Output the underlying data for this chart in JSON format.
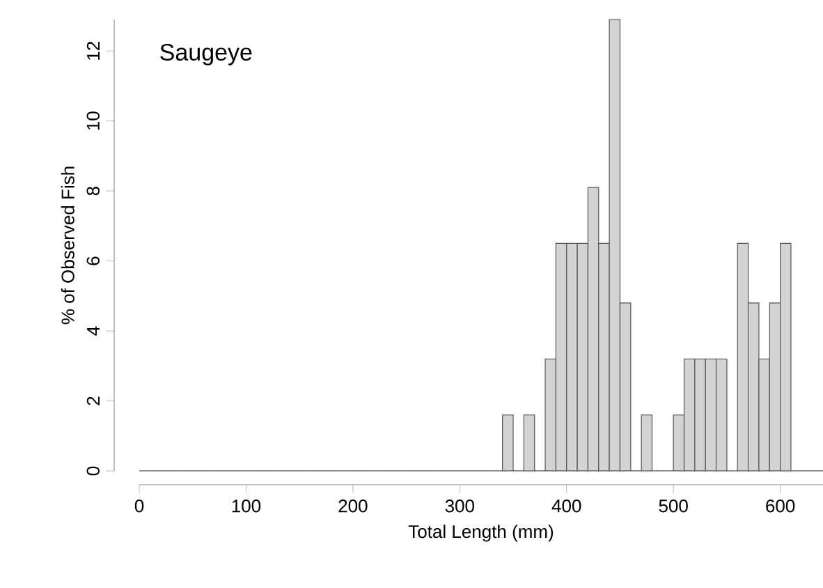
{
  "chart_data": {
    "type": "histogram",
    "title": "Saugeye",
    "xlabel": "Total Length (mm)",
    "ylabel": "% of Observed Fish",
    "bins": [
      0,
      10,
      20,
      30,
      40,
      50,
      60,
      70,
      80,
      90,
      100,
      110,
      120,
      130,
      140,
      150,
      160,
      170,
      180,
      190,
      200,
      210,
      220,
      230,
      240,
      250,
      260,
      270,
      280,
      290,
      300,
      310,
      320,
      330,
      340,
      350,
      360,
      370,
      380,
      390,
      400,
      410,
      420,
      430,
      440,
      450,
      460,
      470,
      480,
      490,
      500,
      510,
      520,
      530,
      540,
      550,
      560,
      570,
      580,
      590,
      600,
      610,
      620,
      630,
      640
    ],
    "values": [
      0,
      0,
      0,
      0,
      0,
      0,
      0,
      0,
      0,
      0,
      0,
      0,
      0,
      0,
      0,
      0,
      0,
      0,
      0,
      0,
      0,
      0,
      0,
      0,
      0,
      0,
      0,
      0,
      0,
      0,
      0,
      0,
      0,
      0,
      1.6,
      0,
      1.6,
      0,
      3.2,
      6.5,
      6.5,
      6.5,
      8.1,
      6.5,
      12.9,
      4.8,
      0,
      1.6,
      0,
      0,
      1.6,
      3.2,
      3.2,
      3.2,
      3.2,
      0,
      6.5,
      4.8,
      3.2,
      4.8,
      6.5,
      0,
      0,
      0
    ],
    "color": "#d3d3d3",
    "xlim": [
      0,
      640
    ],
    "ylim": [
      0,
      12.9
    ],
    "xticks": [
      0,
      100,
      200,
      300,
      400,
      500,
      600
    ],
    "yticks": [
      0,
      2,
      4,
      6,
      8,
      10,
      12
    ]
  }
}
